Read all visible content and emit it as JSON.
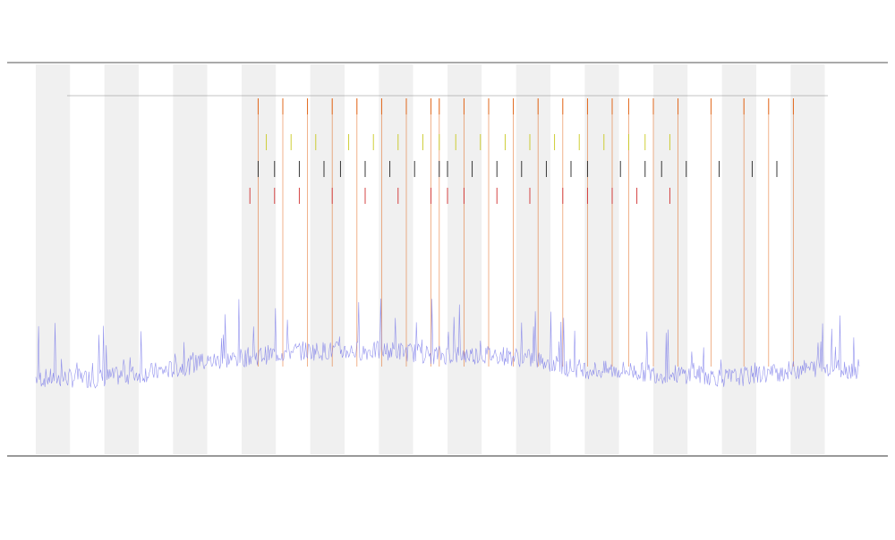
{
  "chart_data": {
    "type": "line",
    "title": "",
    "subtitle_lines": [],
    "xlabel": "",
    "ylabel": "",
    "legend_entries": [],
    "background_band_colors": [
      "#f0f0f0",
      "#ffffff"
    ],
    "background_band_count": 24,
    "grid": false,
    "legend_placement": "top-left",
    "baseline_series": {
      "name": "",
      "color": "#6f6fe8",
      "x_range": [
        0,
        100
      ],
      "y_range": [
        0,
        100
      ],
      "envelope_points": [
        [
          0,
          17
        ],
        [
          4,
          17
        ],
        [
          8,
          17
        ],
        [
          12,
          18
        ],
        [
          16,
          19
        ],
        [
          20,
          21
        ],
        [
          24,
          22
        ],
        [
          28,
          23
        ],
        [
          32,
          24
        ],
        [
          36,
          24
        ],
        [
          40,
          24
        ],
        [
          44,
          24
        ],
        [
          48,
          23
        ],
        [
          52,
          23
        ],
        [
          56,
          23
        ],
        [
          60,
          22
        ],
        [
          64,
          20
        ],
        [
          68,
          19
        ],
        [
          72,
          19
        ],
        [
          76,
          18
        ],
        [
          80,
          18
        ],
        [
          84,
          17
        ],
        [
          88,
          18
        ],
        [
          92,
          19
        ],
        [
          96,
          20
        ],
        [
          100,
          19
        ]
      ]
    },
    "event_series": [
      {
        "name": "",
        "color": "#e06010",
        "x": [
          27,
          30,
          33,
          36,
          39,
          42,
          45,
          48,
          49,
          52,
          55,
          58,
          61,
          64,
          67,
          70,
          72,
          75,
          78,
          82,
          86,
          89,
          92
        ]
      },
      {
        "name": "",
        "color": "#c8c820",
        "x": [
          28,
          31,
          34,
          38,
          41,
          44,
          47,
          49,
          51,
          54,
          57,
          60,
          63,
          66,
          69,
          72,
          74,
          77
        ]
      },
      {
        "name": "",
        "color": "#222222",
        "x": [
          27,
          29,
          32,
          35,
          37,
          40,
          43,
          46,
          49,
          50,
          53,
          56,
          59,
          62,
          65,
          67,
          71,
          74,
          76,
          79,
          83,
          87,
          90
        ]
      },
      {
        "name": "",
        "color": "#d03030",
        "x": [
          26,
          29,
          32,
          36,
          40,
          44,
          48,
          50,
          52,
          56,
          60,
          64,
          67,
          70,
          73,
          77
        ]
      }
    ],
    "x_tick_labels": [],
    "axis_note": ""
  }
}
